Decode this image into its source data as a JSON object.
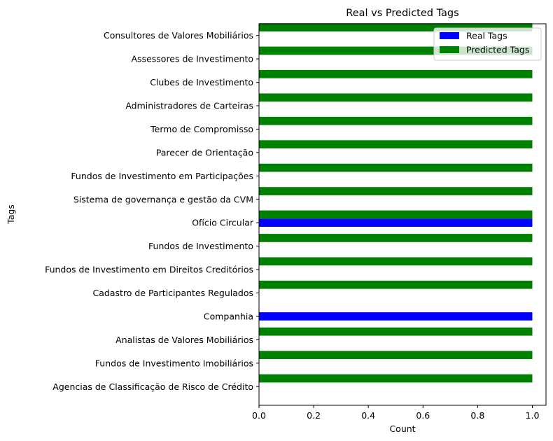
{
  "chart_data": {
    "type": "bar",
    "orientation": "horizontal",
    "title": "Real vs Predicted Tags",
    "xlabel": "Count",
    "ylabel": "Tags",
    "xlim": [
      0,
      1.05
    ],
    "xticks": [
      "0.0",
      "0.2",
      "0.4",
      "0.6",
      "0.8",
      "1.0"
    ],
    "grid": false,
    "legend_position": "top-right",
    "categories": [
      "Agencias de Classificação de Risco de Crédito",
      "Fundos de Investimento Imobiliários",
      "Analistas de Valores Mobiliários",
      "Companhia",
      "Cadastro de Participantes Regulados",
      "Fundos de Investimento em Direitos Creditórios",
      "Fundos de Investimento",
      "Ofício Circular",
      "Sistema de governança e gestão da CVM",
      "Fundos de Investimento em Participações",
      "Parecer de Orientação",
      "Termo de Compromisso",
      "Administradores de Carteiras",
      "Clubes de Investimento",
      "Assessores de Investimento",
      "Consultores de Valores Mobiliários"
    ],
    "series": [
      {
        "name": "Real Tags",
        "color": "#0000ff",
        "values": [
          0,
          0,
          0,
          1,
          0,
          0,
          0,
          1,
          0,
          0,
          0,
          0,
          0,
          0,
          0,
          0
        ]
      },
      {
        "name": "Predicted Tags",
        "color": "#008000",
        "values": [
          1,
          1,
          1,
          0,
          1,
          1,
          1,
          1,
          1,
          1,
          1,
          1,
          1,
          1,
          1,
          1
        ]
      }
    ]
  }
}
